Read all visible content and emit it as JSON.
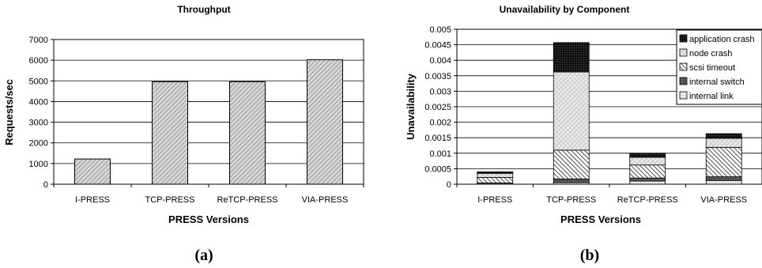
{
  "captions": [
    "(a)",
    "(b)"
  ],
  "chart_data": [
    {
      "type": "bar",
      "title": "Throughput",
      "xlabel": "PRESS Versions",
      "ylabel": "Requests/sec",
      "categories": [
        "I-PRESS",
        "TCP-PRESS",
        "ReTCP-PRESS",
        "VIA-PRESS"
      ],
      "values": [
        1220,
        4960,
        4960,
        6020
      ],
      "ylim": [
        0,
        7000
      ],
      "yticks": [
        "0",
        "1000",
        "2000",
        "3000",
        "4000",
        "5000",
        "6000",
        "7000"
      ],
      "grid": true
    },
    {
      "type": "bar",
      "stacked": true,
      "title": "Unavailability by Component",
      "xlabel": "PRESS Versions",
      "ylabel": "Unavailability",
      "categories": [
        "I-PRESS",
        "TCP-PRESS",
        "ReTCP-PRESS",
        "VIA-PRESS"
      ],
      "series": [
        {
          "name": "internal link",
          "pattern": "light",
          "values": [
            3e-05,
            5e-05,
            0.0001,
            0.00012
          ]
        },
        {
          "name": "internal switch",
          "pattern": "darkgray",
          "values": [
            1e-05,
            0.00012,
            0.0001,
            0.00012
          ]
        },
        {
          "name": "scsi timeout",
          "pattern": "hatch",
          "values": [
            0.00018,
            0.00093,
            0.00042,
            0.00095
          ]
        },
        {
          "name": "node crash",
          "pattern": "crosshatch",
          "values": [
            0.00013,
            0.00252,
            0.00025,
            0.00029
          ]
        },
        {
          "name": "application crash",
          "pattern": "black",
          "values": [
            5e-05,
            0.00095,
            0.00013,
            0.00015
          ]
        }
      ],
      "legend_order": [
        "application crash",
        "node crash",
        "scsi timeout",
        "internal switch",
        "internal link"
      ],
      "legend_position": "top-right",
      "ylim": [
        0,
        0.005
      ],
      "yticks": [
        "0",
        "0.0005",
        "0.001",
        "0.0015",
        "0.002",
        "0.0025",
        "0.003",
        "0.0035",
        "0.004",
        "0.0045",
        "0.005"
      ],
      "grid": true
    }
  ]
}
